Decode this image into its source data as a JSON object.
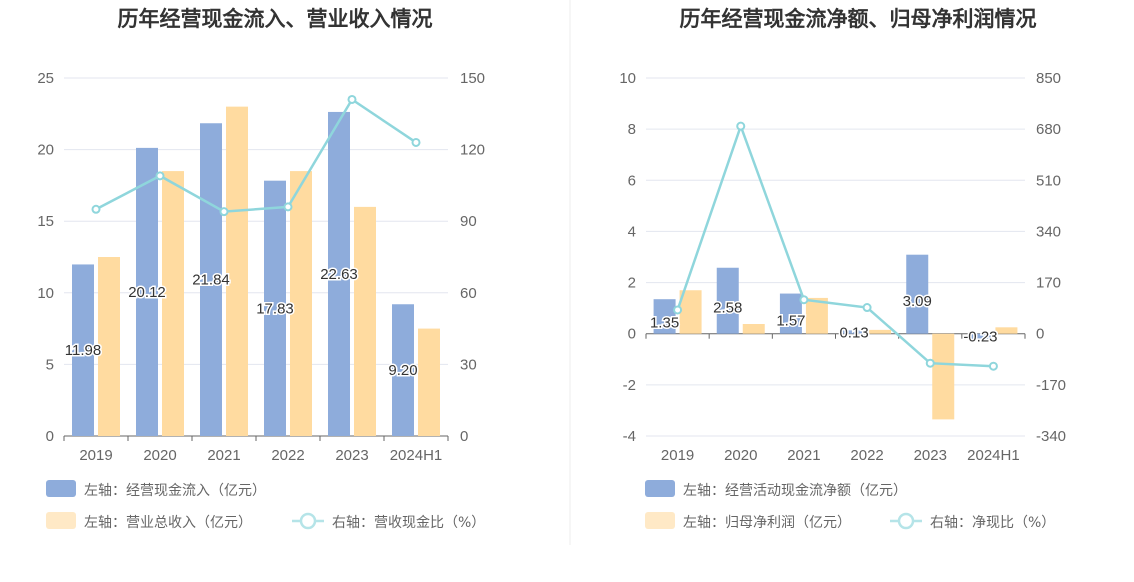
{
  "colors": {
    "bar_primary": "#8eacdb",
    "bar_secondary": "#ffdba0",
    "line": "#8fd6dc",
    "grid": "#e3e6ef",
    "axis": "#666666"
  },
  "chart_data": [
    {
      "type": "bar",
      "title": "历年经营现金流入、营业收入情况",
      "categories": [
        "2019",
        "2020",
        "2021",
        "2022",
        "2023",
        "2024H1"
      ],
      "ylim_left": [
        0,
        25
      ],
      "yticks_left": [
        "0",
        "5",
        "10",
        "15",
        "20",
        "25"
      ],
      "ylim_right": [
        0,
        150
      ],
      "yticks_right": [
        "0",
        "30",
        "60",
        "90",
        "120",
        "150"
      ],
      "series": [
        {
          "name": "左轴：经营现金流入（亿元）",
          "axis": "left",
          "kind": "bar",
          "values": [
            11.98,
            20.12,
            21.84,
            17.83,
            22.63,
            9.2
          ],
          "labels": [
            "11.98",
            "20.12",
            "21.84",
            "17.83",
            "22.63",
            "9.20"
          ]
        },
        {
          "name": "左轴：营业总收入（亿元）",
          "axis": "left",
          "kind": "bar",
          "values": [
            12.5,
            18.5,
            23.0,
            18.5,
            16.0,
            7.5
          ]
        },
        {
          "name": "右轴：营收现金比（%）",
          "axis": "right",
          "kind": "line",
          "values": [
            95,
            109,
            94,
            96,
            141,
            123
          ]
        }
      ]
    },
    {
      "type": "bar",
      "title": "历年经营现金流净额、归母净利润情况",
      "categories": [
        "2019",
        "2020",
        "2021",
        "2022",
        "2023",
        "2024H1"
      ],
      "ylim_left": [
        -4,
        10
      ],
      "yticks_left": [
        "-4",
        "-2",
        "0",
        "2",
        "4",
        "6",
        "8",
        "10"
      ],
      "ylim_right": [
        -340,
        850
      ],
      "yticks_right": [
        "-340",
        "-170",
        "0",
        "170",
        "340",
        "510",
        "680",
        "850"
      ],
      "series": [
        {
          "name": "左轴：经营活动现金流净额（亿元）",
          "axis": "left",
          "kind": "bar",
          "values": [
            1.35,
            2.58,
            1.57,
            0.13,
            3.09,
            -0.23
          ],
          "labels": [
            "1.35",
            "2.58",
            "1.57",
            "0.13",
            "3.09",
            "-0.23"
          ]
        },
        {
          "name": "左轴：归母净利润（亿元）",
          "axis": "left",
          "kind": "bar",
          "values": [
            1.7,
            0.38,
            1.4,
            0.15,
            -3.35,
            0.25
          ]
        },
        {
          "name": "右轴：净现比（%）",
          "axis": "right",
          "kind": "line",
          "values": [
            79,
            690,
            113,
            87,
            -98,
            -108
          ]
        }
      ]
    }
  ]
}
